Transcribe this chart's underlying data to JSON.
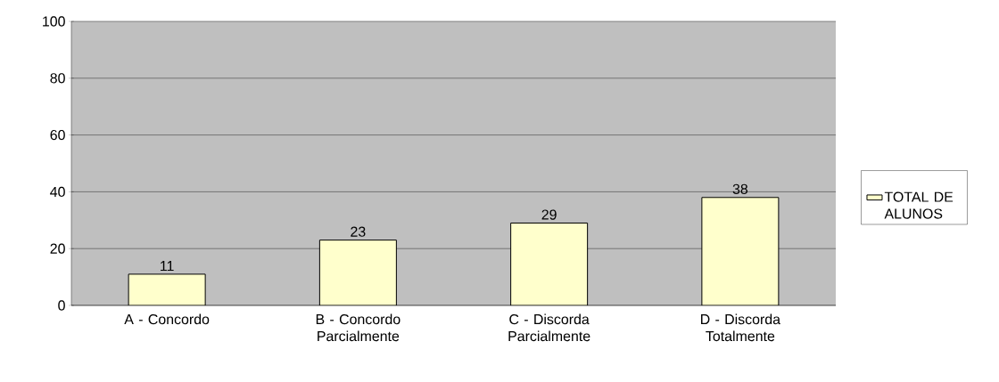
{
  "chart_data": {
    "type": "bar",
    "categories": [
      "A - Concordo",
      "B - Concordo Parcialmente",
      "C - Discorda Parcialmente",
      "D - Discorda Totalmente"
    ],
    "series": [
      {
        "name": "TOTAL DE ALUNOS",
        "color": "#ffffcc",
        "values": [
          11,
          23,
          29,
          38
        ]
      }
    ],
    "ylim": [
      0,
      100
    ],
    "yticks": [
      0,
      20,
      40,
      60,
      80,
      100
    ],
    "grid": "y",
    "legend": "right",
    "data_labels": true
  }
}
